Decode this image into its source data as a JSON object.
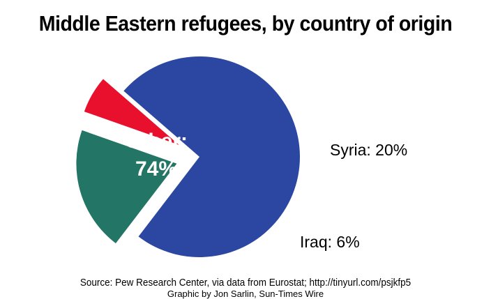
{
  "title": "Middle Eastern refugees, by country of origin",
  "source": "Source: Pew Research Center, via data from Eurostat; http://tinyurl.com/psjkfp5",
  "credit": "Graphic by Jon Sarlin, Sun-Times Wire",
  "chart_data": {
    "type": "pie",
    "title": "Middle Eastern refugees, by country of origin",
    "slices": [
      {
        "label": "Other",
        "display": "Other:",
        "value_label": "74%",
        "value": 74,
        "color": "#2b47a2",
        "exploded": false
      },
      {
        "label": "Syria",
        "display": "Syria: 20%",
        "value": 20,
        "color": "#237565",
        "exploded": true
      },
      {
        "label": "Iraq",
        "display": "Iraq: 6%",
        "value": 6,
        "color": "#e8102d",
        "exploded": true
      }
    ]
  }
}
